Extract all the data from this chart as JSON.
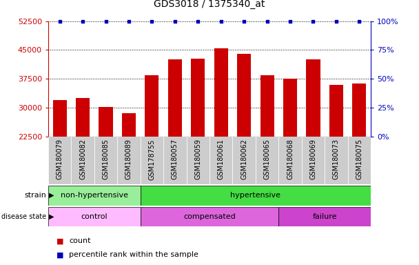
{
  "title": "GDS3018 / 1375340_at",
  "samples": [
    "GSM180079",
    "GSM180082",
    "GSM180085",
    "GSM180089",
    "GSM178755",
    "GSM180057",
    "GSM180059",
    "GSM180061",
    "GSM180062",
    "GSM180065",
    "GSM180068",
    "GSM180069",
    "GSM180073",
    "GSM180075"
  ],
  "counts": [
    32000,
    32500,
    30200,
    28500,
    38500,
    42500,
    42800,
    45500,
    44000,
    38500,
    37500,
    42500,
    36000,
    36200
  ],
  "ylim_left": [
    22500,
    52500
  ],
  "ylim_right": [
    0,
    100
  ],
  "yticks_left": [
    22500,
    30000,
    37500,
    45000,
    52500
  ],
  "yticks_right": [
    0,
    25,
    50,
    75,
    100
  ],
  "bar_color": "#cc0000",
  "dot_color": "#0000bb",
  "strain_groups": [
    {
      "label": "non-hypertensive",
      "start": 0,
      "end": 4,
      "color": "#99ee99"
    },
    {
      "label": "hypertensive",
      "start": 4,
      "end": 14,
      "color": "#44dd44"
    }
  ],
  "disease_groups": [
    {
      "label": "control",
      "start": 0,
      "end": 4,
      "color": "#ffbbff"
    },
    {
      "label": "compensated",
      "start": 4,
      "end": 10,
      "color": "#dd66dd"
    },
    {
      "label": "failure",
      "start": 10,
      "end": 14,
      "color": "#cc44cc"
    }
  ],
  "bar_color_legend": "#cc0000",
  "dot_color_legend": "#0000bb",
  "tick_bg_color": "#cccccc",
  "title_fontsize": 10,
  "tick_label_fontsize": 7,
  "annotation_fontsize": 8,
  "legend_fontsize": 8
}
